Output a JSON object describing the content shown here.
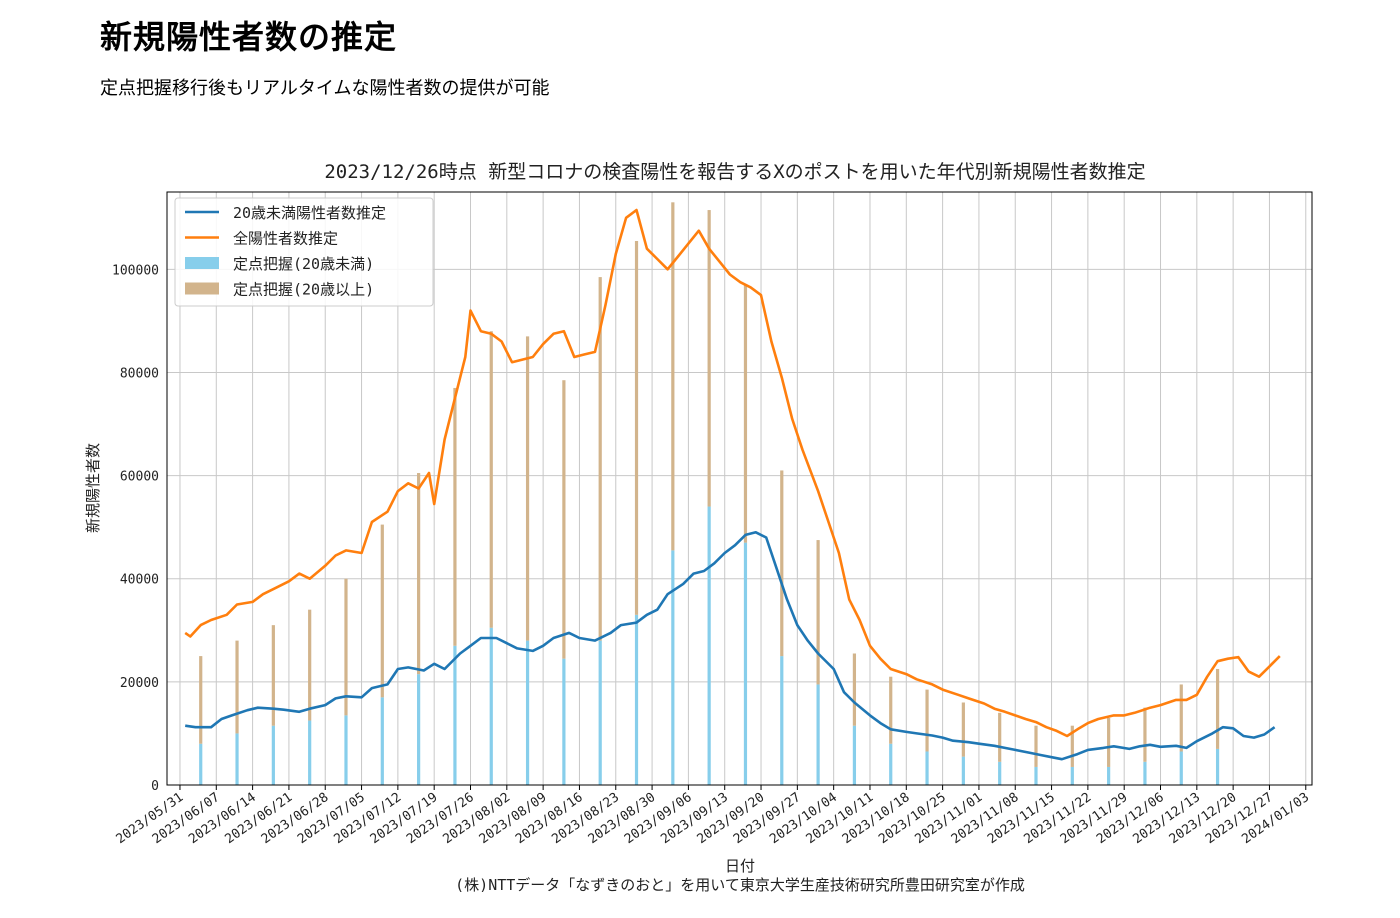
{
  "page": {
    "title": "新規陽性者数の推定",
    "subtitle": "定点把握移行後もリアルタイムな陽性者数の提供が可能"
  },
  "chart_data": {
    "type": "line",
    "title": "2023/12/26時点 新型コロナの検査陽性を報告するXのポストを用いた年代別新規陽性者数推定",
    "xlabel": "日付",
    "ylabel": "新規陽性者数",
    "caption": "(株)NTTデータ「なずきのおと」を用いて東京大学生産技術研究所豊田研究室が作成",
    "xlim": [
      "2023-05-31",
      "2024-01-03"
    ],
    "ylim": [
      0,
      115000
    ],
    "grid": true,
    "legend_position": "top-left",
    "x_ticks": [
      "2023/05/31",
      "2023/06/07",
      "2023/06/14",
      "2023/06/21",
      "2023/06/28",
      "2023/07/05",
      "2023/07/12",
      "2023/07/19",
      "2023/07/26",
      "2023/08/02",
      "2023/08/09",
      "2023/08/16",
      "2023/08/23",
      "2023/08/30",
      "2023/09/06",
      "2023/09/13",
      "2023/09/20",
      "2023/09/27",
      "2023/10/04",
      "2023/10/11",
      "2023/10/18",
      "2023/10/25",
      "2023/11/01",
      "2023/11/08",
      "2023/11/15",
      "2023/11/22",
      "2023/11/29",
      "2023/12/06",
      "2023/12/13",
      "2023/12/20",
      "2023/12/27",
      "2024/01/03"
    ],
    "y_ticks": [
      "0",
      "20000",
      "40000",
      "60000",
      "80000",
      "100000"
    ],
    "series": [
      {
        "name": "20歳未満陽性者数推定",
        "kind": "line",
        "color": "#1f77b4",
        "points": [
          [
            "2023-06-01",
            11500
          ],
          [
            "2023-06-03",
            11200
          ],
          [
            "2023-06-06",
            11200
          ],
          [
            "2023-06-08",
            12800
          ],
          [
            "2023-06-10",
            13500
          ],
          [
            "2023-06-13",
            14500
          ],
          [
            "2023-06-15",
            15000
          ],
          [
            "2023-06-18",
            14800
          ],
          [
            "2023-06-20",
            14600
          ],
          [
            "2023-06-23",
            14200
          ],
          [
            "2023-06-25",
            14800
          ],
          [
            "2023-06-28",
            15500
          ],
          [
            "2023-06-30",
            16800
          ],
          [
            "2023-07-02",
            17200
          ],
          [
            "2023-07-05",
            17000
          ],
          [
            "2023-07-07",
            18800
          ],
          [
            "2023-07-10",
            19500
          ],
          [
            "2023-07-12",
            22500
          ],
          [
            "2023-07-14",
            22800
          ],
          [
            "2023-07-17",
            22200
          ],
          [
            "2023-07-19",
            23500
          ],
          [
            "2023-07-21",
            22500
          ],
          [
            "2023-07-24",
            25500
          ],
          [
            "2023-07-26",
            27000
          ],
          [
            "2023-07-28",
            28500
          ],
          [
            "2023-07-31",
            28500
          ],
          [
            "2023-08-02",
            27500
          ],
          [
            "2023-08-04",
            26500
          ],
          [
            "2023-08-07",
            26000
          ],
          [
            "2023-08-09",
            27000
          ],
          [
            "2023-08-11",
            28500
          ],
          [
            "2023-08-14",
            29500
          ],
          [
            "2023-08-16",
            28500
          ],
          [
            "2023-08-19",
            28000
          ],
          [
            "2023-08-22",
            29500
          ],
          [
            "2023-08-24",
            31000
          ],
          [
            "2023-08-27",
            31500
          ],
          [
            "2023-08-29",
            33000
          ],
          [
            "2023-08-31",
            34000
          ],
          [
            "2023-09-02",
            37000
          ],
          [
            "2023-09-05",
            39000
          ],
          [
            "2023-09-07",
            41000
          ],
          [
            "2023-09-09",
            41500
          ],
          [
            "2023-09-11",
            43000
          ],
          [
            "2023-09-13",
            45000
          ],
          [
            "2023-09-15",
            46500
          ],
          [
            "2023-09-17",
            48500
          ],
          [
            "2023-09-19",
            49000
          ],
          [
            "2023-09-21",
            48000
          ],
          [
            "2023-09-23",
            42000
          ],
          [
            "2023-09-25",
            36000
          ],
          [
            "2023-09-27",
            31000
          ],
          [
            "2023-09-29",
            28000
          ],
          [
            "2023-10-01",
            25500
          ],
          [
            "2023-10-04",
            22500
          ],
          [
            "2023-10-06",
            18000
          ],
          [
            "2023-10-08",
            16000
          ],
          [
            "2023-10-11",
            13500
          ],
          [
            "2023-10-13",
            12000
          ],
          [
            "2023-10-15",
            10800
          ],
          [
            "2023-10-18",
            10300
          ],
          [
            "2023-10-20",
            10000
          ],
          [
            "2023-10-23",
            9600
          ],
          [
            "2023-10-25",
            9200
          ],
          [
            "2023-10-27",
            8600
          ],
          [
            "2023-10-30",
            8300
          ],
          [
            "2023-11-01",
            8000
          ],
          [
            "2023-11-04",
            7600
          ],
          [
            "2023-11-06",
            7200
          ],
          [
            "2023-11-08",
            6800
          ],
          [
            "2023-11-11",
            6200
          ],
          [
            "2023-11-13",
            5800
          ],
          [
            "2023-11-15",
            5400
          ],
          [
            "2023-11-17",
            5000
          ],
          [
            "2023-11-20",
            6000
          ],
          [
            "2023-11-22",
            6800
          ],
          [
            "2023-11-25",
            7200
          ],
          [
            "2023-11-27",
            7500
          ],
          [
            "2023-11-30",
            7000
          ],
          [
            "2023-12-02",
            7500
          ],
          [
            "2023-12-04",
            7800
          ],
          [
            "2023-12-06",
            7400
          ],
          [
            "2023-12-09",
            7600
          ],
          [
            "2023-12-11",
            7200
          ],
          [
            "2023-12-13",
            8500
          ],
          [
            "2023-12-16",
            10000
          ],
          [
            "2023-12-18",
            11200
          ],
          [
            "2023-12-20",
            11000
          ],
          [
            "2023-12-22",
            9500
          ],
          [
            "2023-12-24",
            9200
          ],
          [
            "2023-12-26",
            9800
          ],
          [
            "2023-12-28",
            11200
          ]
        ]
      },
      {
        "name": "全陽性者数推定",
        "kind": "line",
        "color": "#ff7f0e",
        "points": [
          [
            "2023-06-01",
            29500
          ],
          [
            "2023-06-02",
            28800
          ],
          [
            "2023-06-04",
            31000
          ],
          [
            "2023-06-06",
            32000
          ],
          [
            "2023-06-09",
            33000
          ],
          [
            "2023-06-11",
            35000
          ],
          [
            "2023-06-14",
            35500
          ],
          [
            "2023-06-16",
            37000
          ],
          [
            "2023-06-18",
            38000
          ],
          [
            "2023-06-21",
            39500
          ],
          [
            "2023-06-23",
            41000
          ],
          [
            "2023-06-25",
            40000
          ],
          [
            "2023-06-28",
            42500
          ],
          [
            "2023-06-30",
            44500
          ],
          [
            "2023-07-02",
            45500
          ],
          [
            "2023-07-05",
            45000
          ],
          [
            "2023-07-07",
            51000
          ],
          [
            "2023-07-10",
            53000
          ],
          [
            "2023-07-12",
            57000
          ],
          [
            "2023-07-14",
            58500
          ],
          [
            "2023-07-16",
            57500
          ],
          [
            "2023-07-18",
            60500
          ],
          [
            "2023-07-19",
            54500
          ],
          [
            "2023-07-21",
            67000
          ],
          [
            "2023-07-23",
            75000
          ],
          [
            "2023-07-25",
            83000
          ],
          [
            "2023-07-26",
            92000
          ],
          [
            "2023-07-28",
            88000
          ],
          [
            "2023-07-30",
            87500
          ],
          [
            "2023-08-01",
            86000
          ],
          [
            "2023-08-03",
            82000
          ],
          [
            "2023-08-05",
            82500
          ],
          [
            "2023-08-07",
            83000
          ],
          [
            "2023-08-09",
            85500
          ],
          [
            "2023-08-11",
            87500
          ],
          [
            "2023-08-13",
            88000
          ],
          [
            "2023-08-15",
            83000
          ],
          [
            "2023-08-17",
            83500
          ],
          [
            "2023-08-19",
            84000
          ],
          [
            "2023-08-21",
            93000
          ],
          [
            "2023-08-23",
            103000
          ],
          [
            "2023-08-25",
            110000
          ],
          [
            "2023-08-27",
            111500
          ],
          [
            "2023-08-29",
            104000
          ],
          [
            "2023-08-31",
            102000
          ],
          [
            "2023-09-02",
            100000
          ],
          [
            "2023-09-04",
            102500
          ],
          [
            "2023-09-06",
            105000
          ],
          [
            "2023-09-08",
            107500
          ],
          [
            "2023-09-10",
            104000
          ],
          [
            "2023-09-12",
            101500
          ],
          [
            "2023-09-14",
            99000
          ],
          [
            "2023-09-16",
            97500
          ],
          [
            "2023-09-18",
            96500
          ],
          [
            "2023-09-20",
            95000
          ],
          [
            "2023-09-22",
            86000
          ],
          [
            "2023-09-24",
            79000
          ],
          [
            "2023-09-26",
            71000
          ],
          [
            "2023-09-28",
            65000
          ],
          [
            "2023-10-01",
            57000
          ],
          [
            "2023-10-03",
            51000
          ],
          [
            "2023-10-05",
            45000
          ],
          [
            "2023-10-07",
            36000
          ],
          [
            "2023-10-09",
            32000
          ],
          [
            "2023-10-11",
            27000
          ],
          [
            "2023-10-13",
            24500
          ],
          [
            "2023-10-15",
            22500
          ],
          [
            "2023-10-18",
            21500
          ],
          [
            "2023-10-20",
            20500
          ],
          [
            "2023-10-23",
            19500
          ],
          [
            "2023-10-25",
            18500
          ],
          [
            "2023-10-28",
            17500
          ],
          [
            "2023-10-30",
            16800
          ],
          [
            "2023-11-02",
            15800
          ],
          [
            "2023-11-04",
            14800
          ],
          [
            "2023-11-06",
            14200
          ],
          [
            "2023-11-08",
            13500
          ],
          [
            "2023-11-10",
            12800
          ],
          [
            "2023-11-12",
            12200
          ],
          [
            "2023-11-14",
            11200
          ],
          [
            "2023-11-16",
            10500
          ],
          [
            "2023-11-18",
            9500
          ],
          [
            "2023-11-20",
            10800
          ],
          [
            "2023-11-22",
            12000
          ],
          [
            "2023-11-24",
            12800
          ],
          [
            "2023-11-27",
            13500
          ],
          [
            "2023-11-29",
            13500
          ],
          [
            "2023-12-01",
            14000
          ],
          [
            "2023-12-04",
            15000
          ],
          [
            "2023-12-06",
            15500
          ],
          [
            "2023-12-09",
            16500
          ],
          [
            "2023-12-11",
            16500
          ],
          [
            "2023-12-13",
            17500
          ],
          [
            "2023-12-15",
            21000
          ],
          [
            "2023-12-17",
            24000
          ],
          [
            "2023-12-19",
            24500
          ],
          [
            "2023-12-21",
            24800
          ],
          [
            "2023-12-23",
            22000
          ],
          [
            "2023-12-25",
            21000
          ],
          [
            "2023-12-27",
            23000
          ],
          [
            "2023-12-29",
            25000
          ]
        ]
      },
      {
        "name": "定点把握(20歳未満)",
        "kind": "bar",
        "color": "#87ceeb",
        "points": [
          [
            "2023-06-04",
            8000
          ],
          [
            "2023-06-11",
            10000
          ],
          [
            "2023-06-18",
            11500
          ],
          [
            "2023-06-25",
            12500
          ],
          [
            "2023-07-02",
            13500
          ],
          [
            "2023-07-09",
            17000
          ],
          [
            "2023-07-16",
            21500
          ],
          [
            "2023-07-23",
            27000
          ],
          [
            "2023-07-30",
            30500
          ],
          [
            "2023-08-06",
            28000
          ],
          [
            "2023-08-13",
            24500
          ],
          [
            "2023-08-20",
            28000
          ],
          [
            "2023-08-27",
            33000
          ],
          [
            "2023-09-03",
            45500
          ],
          [
            "2023-09-10",
            54000
          ],
          [
            "2023-09-17",
            47000
          ],
          [
            "2023-09-24",
            25000
          ],
          [
            "2023-10-01",
            19500
          ],
          [
            "2023-10-08",
            11500
          ],
          [
            "2023-10-15",
            8000
          ],
          [
            "2023-10-22",
            6500
          ],
          [
            "2023-10-29",
            5500
          ],
          [
            "2023-11-05",
            4500
          ],
          [
            "2023-11-12",
            3500
          ],
          [
            "2023-11-19",
            3500
          ],
          [
            "2023-11-26",
            3500
          ],
          [
            "2023-12-03",
            4500
          ],
          [
            "2023-12-10",
            6500
          ],
          [
            "2023-12-17",
            7000
          ]
        ]
      },
      {
        "name": "定点把握(20歳以上)",
        "kind": "bar",
        "color": "#d2b48c",
        "points": [
          [
            "2023-06-04",
            17000
          ],
          [
            "2023-06-11",
            18000
          ],
          [
            "2023-06-18",
            19500
          ],
          [
            "2023-06-25",
            21500
          ],
          [
            "2023-07-02",
            26500
          ],
          [
            "2023-07-09",
            33500
          ],
          [
            "2023-07-16",
            39000
          ],
          [
            "2023-07-23",
            50000
          ],
          [
            "2023-07-30",
            57500
          ],
          [
            "2023-08-06",
            59000
          ],
          [
            "2023-08-13",
            54000
          ],
          [
            "2023-08-20",
            70500
          ],
          [
            "2023-08-27",
            72500
          ],
          [
            "2023-09-03",
            67500
          ],
          [
            "2023-09-10",
            57500
          ],
          [
            "2023-09-17",
            50000
          ],
          [
            "2023-09-24",
            36000
          ],
          [
            "2023-10-01",
            28000
          ],
          [
            "2023-10-08",
            14000
          ],
          [
            "2023-10-15",
            13000
          ],
          [
            "2023-10-22",
            12000
          ],
          [
            "2023-10-29",
            10500
          ],
          [
            "2023-11-05",
            9500
          ],
          [
            "2023-11-12",
            8000
          ],
          [
            "2023-11-19",
            8000
          ],
          [
            "2023-11-26",
            9500
          ],
          [
            "2023-12-03",
            10500
          ],
          [
            "2023-12-10",
            13000
          ],
          [
            "2023-12-17",
            15500
          ]
        ]
      }
    ]
  }
}
